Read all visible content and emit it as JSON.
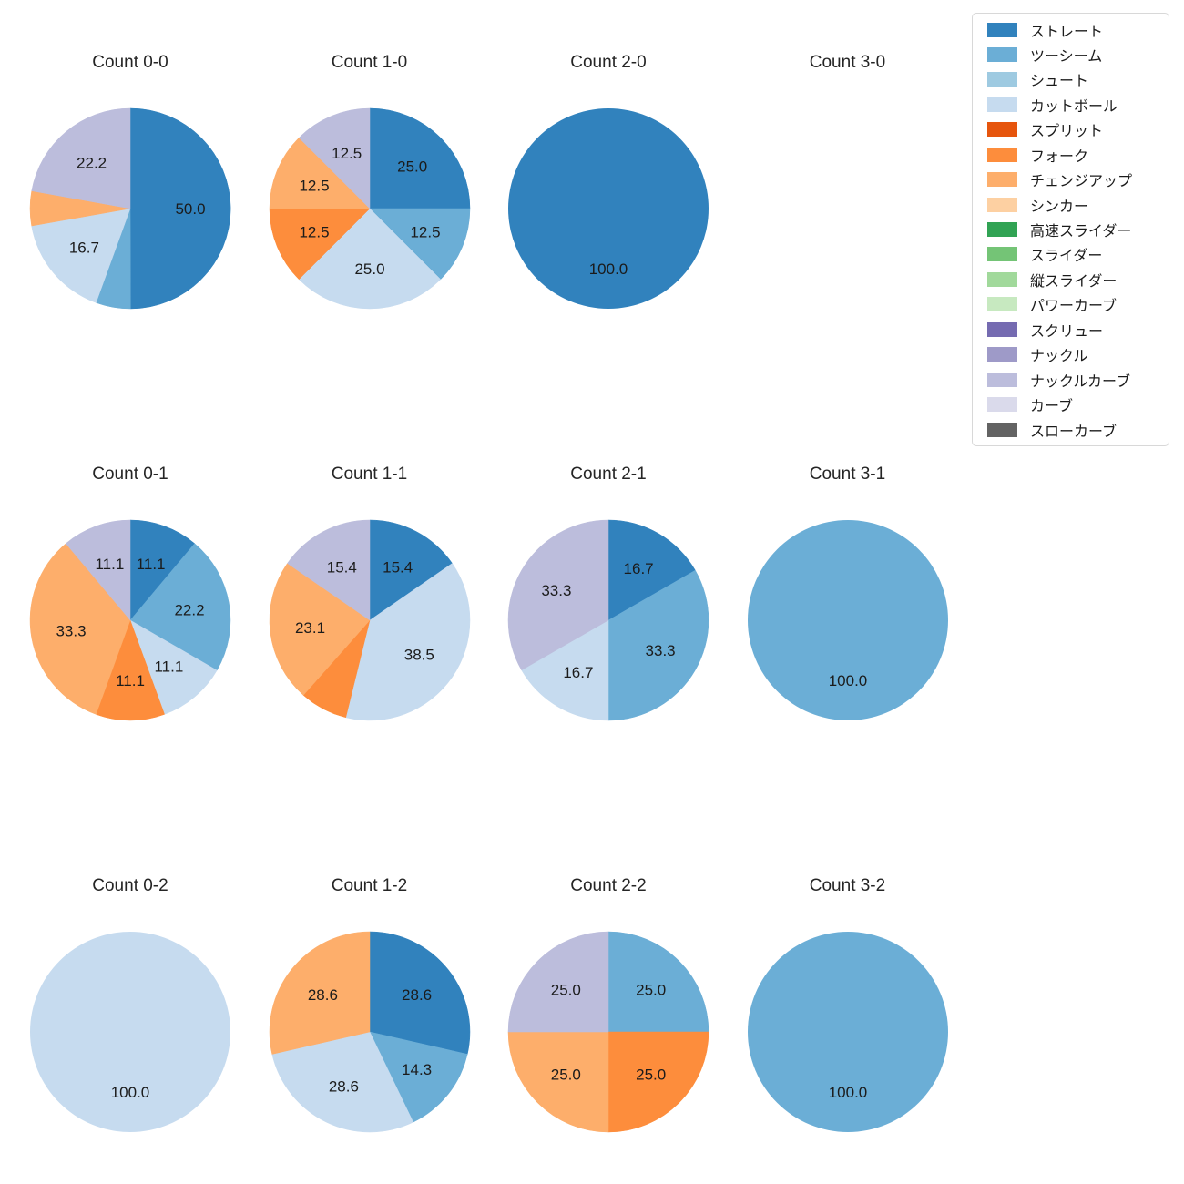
{
  "figure": {
    "background": "#ffffff",
    "text_color": "#1b1b1b"
  },
  "legend": {
    "items": [
      {
        "label": "ストレート",
        "color": "#3182bd"
      },
      {
        "label": "ツーシーム",
        "color": "#6baed6"
      },
      {
        "label": "シュート",
        "color": "#9ecae1"
      },
      {
        "label": "カットボール",
        "color": "#c6dbef"
      },
      {
        "label": "スプリット",
        "color": "#e6550d"
      },
      {
        "label": "フォーク",
        "color": "#fd8d3c"
      },
      {
        "label": "チェンジアップ",
        "color": "#fdae6b"
      },
      {
        "label": "シンカー",
        "color": "#fdd0a2"
      },
      {
        "label": "高速スライダー",
        "color": "#31a354"
      },
      {
        "label": "スライダー",
        "color": "#74c476"
      },
      {
        "label": "縦スライダー",
        "color": "#a1d99b"
      },
      {
        "label": "パワーカーブ",
        "color": "#c7e9c0"
      },
      {
        "label": "スクリュー",
        "color": "#756bb1"
      },
      {
        "label": "ナックル",
        "color": "#9e9ac8"
      },
      {
        "label": "ナックルカーブ",
        "color": "#bcbddc"
      },
      {
        "label": "カーブ",
        "color": "#dadaeb"
      },
      {
        "label": "スローカーブ",
        "color": "#636363"
      }
    ]
  },
  "chart_data": [
    {
      "type": "pie",
      "title": "Count 0-0",
      "slices": [
        {
          "name": "ストレート",
          "pct": 50.0,
          "label": "50.0"
        },
        {
          "name": "ツーシーム",
          "pct": 5.6,
          "label": ""
        },
        {
          "name": "カットボール",
          "pct": 16.7,
          "label": "16.7"
        },
        {
          "name": "チェンジアップ",
          "pct": 5.6,
          "label": ""
        },
        {
          "name": "ナックルカーブ",
          "pct": 22.2,
          "label": "22.2"
        }
      ]
    },
    {
      "type": "pie",
      "title": "Count 1-0",
      "slices": [
        {
          "name": "ストレート",
          "pct": 25.0,
          "label": "25.0"
        },
        {
          "name": "ツーシーム",
          "pct": 12.5,
          "label": "12.5"
        },
        {
          "name": "カットボール",
          "pct": 25.0,
          "label": "25.0"
        },
        {
          "name": "フォーク",
          "pct": 12.5,
          "label": "12.5"
        },
        {
          "name": "チェンジアップ",
          "pct": 12.5,
          "label": "12.5"
        },
        {
          "name": "ナックルカーブ",
          "pct": 12.5,
          "label": "12.5"
        }
      ]
    },
    {
      "type": "pie",
      "title": "Count 2-0",
      "slices": [
        {
          "name": "ストレート",
          "pct": 100.0,
          "label": "100.0"
        }
      ]
    },
    {
      "type": "pie",
      "title": "Count 3-0",
      "slices": []
    },
    {
      "type": "pie",
      "title": "Count 0-1",
      "slices": [
        {
          "name": "ストレート",
          "pct": 11.1,
          "label": "11.1"
        },
        {
          "name": "ツーシーム",
          "pct": 22.2,
          "label": "22.2"
        },
        {
          "name": "カットボール",
          "pct": 11.1,
          "label": "11.1"
        },
        {
          "name": "フォーク",
          "pct": 11.1,
          "label": "11.1"
        },
        {
          "name": "チェンジアップ",
          "pct": 33.3,
          "label": "33.3"
        },
        {
          "name": "ナックルカーブ",
          "pct": 11.1,
          "label": "11.1"
        }
      ]
    },
    {
      "type": "pie",
      "title": "Count 1-1",
      "slices": [
        {
          "name": "ストレート",
          "pct": 15.4,
          "label": "15.4"
        },
        {
          "name": "カットボール",
          "pct": 38.5,
          "label": "38.5"
        },
        {
          "name": "フォーク",
          "pct": 7.7,
          "label": ""
        },
        {
          "name": "チェンジアップ",
          "pct": 23.1,
          "label": "23.1"
        },
        {
          "name": "ナックルカーブ",
          "pct": 15.4,
          "label": "15.4"
        }
      ]
    },
    {
      "type": "pie",
      "title": "Count 2-1",
      "slices": [
        {
          "name": "ストレート",
          "pct": 16.7,
          "label": "16.7"
        },
        {
          "name": "ツーシーム",
          "pct": 33.3,
          "label": "33.3"
        },
        {
          "name": "カットボール",
          "pct": 16.7,
          "label": "16.7"
        },
        {
          "name": "ナックルカーブ",
          "pct": 33.3,
          "label": "33.3"
        }
      ]
    },
    {
      "type": "pie",
      "title": "Count 3-1",
      "slices": [
        {
          "name": "ツーシーム",
          "pct": 100.0,
          "label": "100.0"
        }
      ]
    },
    {
      "type": "pie",
      "title": "Count 0-2",
      "slices": [
        {
          "name": "カットボール",
          "pct": 100.0,
          "label": "100.0"
        }
      ]
    },
    {
      "type": "pie",
      "title": "Count 1-2",
      "slices": [
        {
          "name": "ストレート",
          "pct": 28.6,
          "label": "28.6"
        },
        {
          "name": "ツーシーム",
          "pct": 14.3,
          "label": "14.3"
        },
        {
          "name": "カットボール",
          "pct": 28.6,
          "label": "28.6"
        },
        {
          "name": "チェンジアップ",
          "pct": 28.6,
          "label": "28.6"
        }
      ]
    },
    {
      "type": "pie",
      "title": "Count 2-2",
      "slices": [
        {
          "name": "ツーシーム",
          "pct": 25.0,
          "label": "25.0"
        },
        {
          "name": "フォーク",
          "pct": 25.0,
          "label": "25.0"
        },
        {
          "name": "チェンジアップ",
          "pct": 25.0,
          "label": "25.0"
        },
        {
          "name": "ナックルカーブ",
          "pct": 25.0,
          "label": "25.0"
        }
      ]
    },
    {
      "type": "pie",
      "title": "Count 3-2",
      "slices": [
        {
          "name": "ツーシーム",
          "pct": 100.0,
          "label": "100.0"
        }
      ]
    }
  ]
}
